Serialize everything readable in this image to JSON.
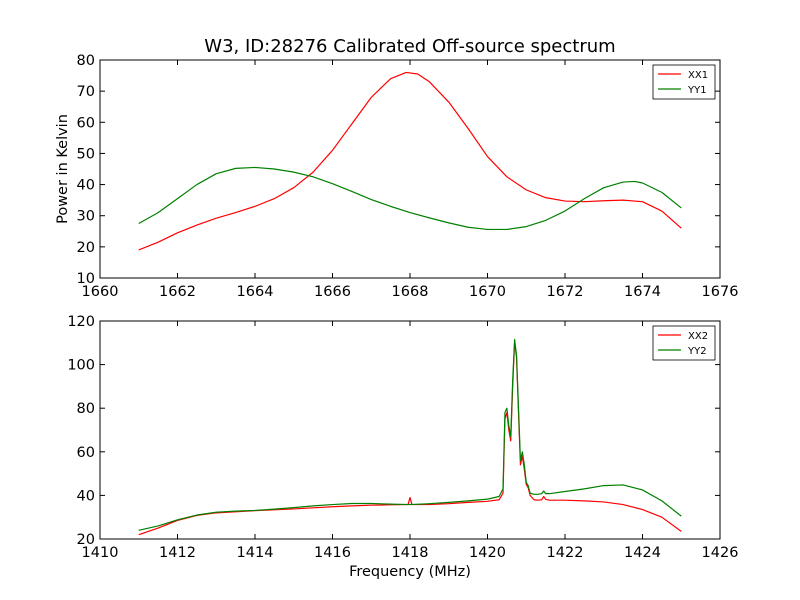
{
  "title": "W3, ID:28276 Calibrated Off-source spectrum",
  "chart_data": [
    {
      "type": "line",
      "title": "W3, ID:28276 Calibrated Off-source spectrum",
      "xlabel": "",
      "ylabel": "Power in Kelvin",
      "xlim": [
        1660,
        1676
      ],
      "ylim": [
        10,
        80
      ],
      "xticks": [
        "1660",
        "1662",
        "1664",
        "1666",
        "1668",
        "1670",
        "1672",
        "1674",
        "1676"
      ],
      "yticks": [
        "10",
        "20",
        "30",
        "40",
        "50",
        "60",
        "70",
        "80"
      ],
      "legend_position": "top-right",
      "grid": false,
      "series": [
        {
          "name": "XX1",
          "color": "#ff0000",
          "x": [
            1661.0,
            1661.5,
            1662.0,
            1662.5,
            1663.0,
            1663.5,
            1664.0,
            1664.5,
            1665.0,
            1665.5,
            1666.0,
            1666.5,
            1667.0,
            1667.5,
            1667.9,
            1668.2,
            1668.5,
            1669.0,
            1669.5,
            1670.0,
            1670.5,
            1671.0,
            1671.5,
            1672.0,
            1672.5,
            1673.0,
            1673.5,
            1674.0,
            1674.5,
            1675.0
          ],
          "y": [
            19.0,
            21.5,
            24.5,
            27.0,
            29.2,
            31.0,
            33.0,
            35.5,
            39.0,
            44.0,
            51.0,
            59.5,
            68.0,
            74.0,
            76.0,
            75.5,
            73.0,
            66.5,
            58.0,
            49.0,
            42.5,
            38.3,
            35.8,
            34.7,
            34.5,
            34.8,
            35.0,
            34.5,
            31.5,
            26.0
          ]
        },
        {
          "name": "YY1",
          "color": "#008000",
          "x": [
            1661.0,
            1661.5,
            1662.0,
            1662.5,
            1663.0,
            1663.5,
            1664.0,
            1664.5,
            1665.0,
            1665.5,
            1666.0,
            1666.5,
            1667.0,
            1667.5,
            1668.0,
            1668.5,
            1669.0,
            1669.5,
            1670.0,
            1670.5,
            1671.0,
            1671.5,
            1672.0,
            1672.5,
            1673.0,
            1673.5,
            1673.8,
            1674.0,
            1674.5,
            1675.0
          ],
          "y": [
            27.5,
            31.0,
            35.5,
            40.0,
            43.5,
            45.2,
            45.5,
            45.0,
            44.0,
            42.5,
            40.3,
            37.8,
            35.2,
            33.0,
            31.0,
            29.3,
            27.7,
            26.3,
            25.6,
            25.6,
            26.5,
            28.5,
            31.5,
            35.5,
            39.0,
            40.8,
            41.0,
            40.5,
            37.5,
            32.5
          ]
        }
      ]
    },
    {
      "type": "line",
      "title": "",
      "xlabel": "Frequency (MHz)",
      "ylabel": "",
      "xlim": [
        1410,
        1426
      ],
      "ylim": [
        20,
        120
      ],
      "xticks": [
        "1410",
        "1412",
        "1414",
        "1416",
        "1418",
        "1420",
        "1422",
        "1424",
        "1426"
      ],
      "yticks": [
        "20",
        "40",
        "60",
        "80",
        "100",
        "120"
      ],
      "legend_position": "top-right",
      "grid": false,
      "series": [
        {
          "name": "XX2",
          "color": "#ff0000",
          "x": [
            1411.0,
            1411.5,
            1412.0,
            1412.5,
            1413.0,
            1413.5,
            1414.0,
            1414.5,
            1415.0,
            1415.5,
            1416.0,
            1416.5,
            1417.0,
            1417.5,
            1417.95,
            1418.0,
            1418.05,
            1418.5,
            1419.0,
            1419.5,
            1420.0,
            1420.3,
            1420.4,
            1420.45,
            1420.5,
            1420.55,
            1420.6,
            1420.65,
            1420.7,
            1420.75,
            1420.8,
            1420.85,
            1420.9,
            1420.95,
            1421.0,
            1421.05,
            1421.1,
            1421.2,
            1421.3,
            1421.4,
            1421.45,
            1421.5,
            1421.6,
            1422.0,
            1422.5,
            1423.0,
            1423.5,
            1424.0,
            1424.5,
            1425.0
          ],
          "y": [
            22.0,
            25.0,
            28.5,
            30.8,
            32.0,
            32.5,
            33.0,
            33.4,
            33.8,
            34.3,
            34.8,
            35.2,
            35.5,
            35.7,
            35.8,
            39.0,
            35.8,
            35.8,
            36.2,
            36.8,
            37.3,
            38.0,
            41.0,
            75.0,
            78.0,
            70.0,
            65.0,
            90.0,
            110.5,
            103.0,
            78.0,
            54.0,
            58.0,
            52.0,
            45.0,
            43.5,
            40.0,
            38.0,
            37.8,
            38.0,
            39.5,
            38.2,
            37.8,
            37.8,
            37.5,
            37.0,
            35.8,
            33.5,
            30.0,
            23.5
          ]
        },
        {
          "name": "YY2",
          "color": "#008000",
          "x": [
            1411.0,
            1411.5,
            1412.0,
            1412.5,
            1413.0,
            1413.5,
            1414.0,
            1414.5,
            1415.0,
            1415.5,
            1416.0,
            1416.5,
            1417.0,
            1417.5,
            1418.0,
            1418.5,
            1419.0,
            1419.5,
            1420.0,
            1420.3,
            1420.4,
            1420.45,
            1420.5,
            1420.55,
            1420.6,
            1420.65,
            1420.7,
            1420.75,
            1420.8,
            1420.85,
            1420.9,
            1420.95,
            1421.0,
            1421.05,
            1421.1,
            1421.2,
            1421.3,
            1421.4,
            1421.45,
            1421.5,
            1421.6,
            1422.0,
            1422.5,
            1423.0,
            1423.5,
            1424.0,
            1424.5,
            1425.0
          ],
          "y": [
            24.0,
            26.0,
            28.8,
            31.0,
            32.3,
            32.8,
            33.1,
            33.7,
            34.4,
            35.2,
            35.8,
            36.3,
            36.3,
            36.0,
            35.8,
            36.2,
            36.8,
            37.5,
            38.3,
            39.5,
            43.0,
            78.0,
            80.0,
            72.0,
            67.0,
            93.0,
            111.5,
            104.0,
            80.0,
            56.0,
            60.0,
            54.0,
            46.0,
            44.5,
            41.0,
            40.5,
            40.5,
            40.8,
            42.0,
            40.8,
            40.8,
            41.8,
            43.0,
            44.5,
            44.8,
            42.5,
            37.5,
            30.5
          ]
        }
      ]
    }
  ]
}
